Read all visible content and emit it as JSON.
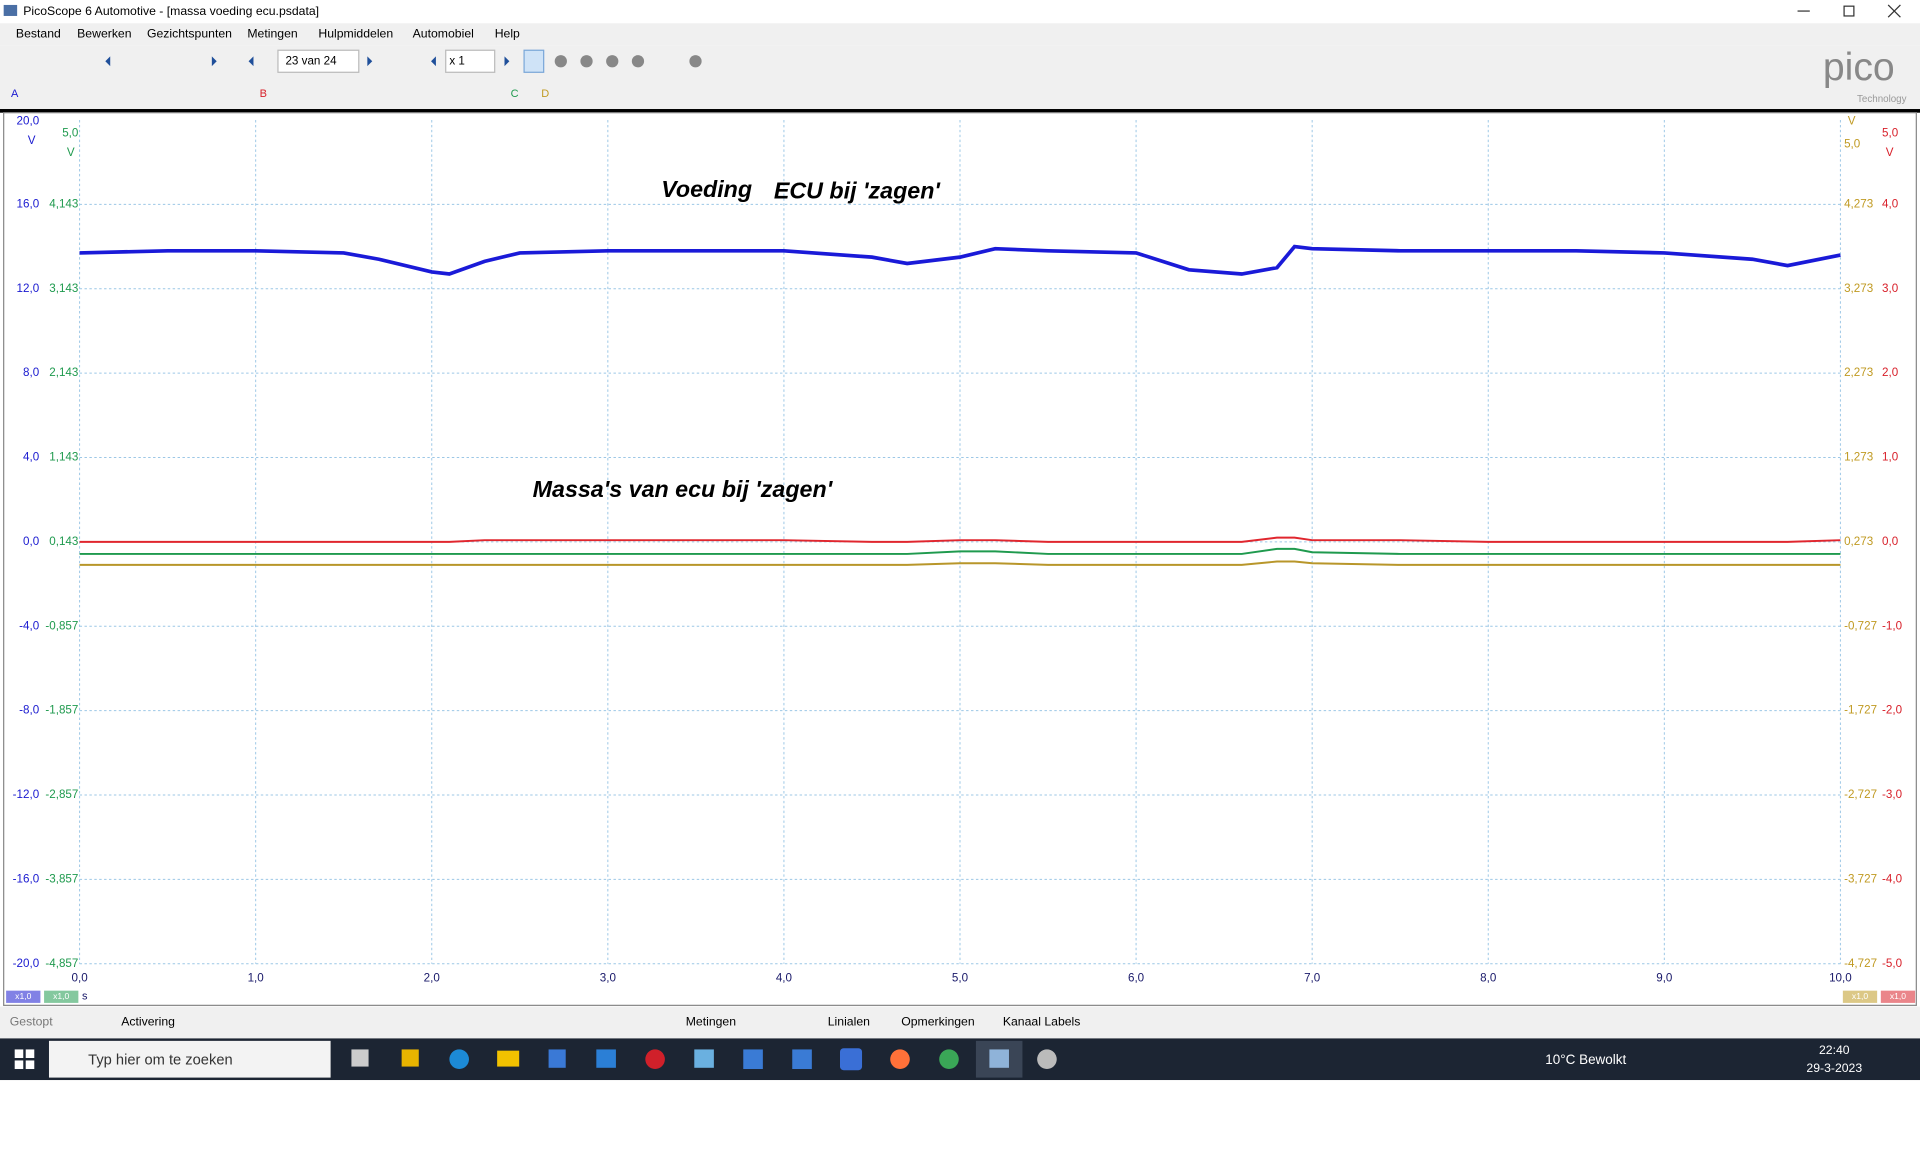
{
  "window": {
    "title": "PicoScope 6 Automotive - [massa voeding ecu.psdata]"
  },
  "menu": [
    "Bestand",
    "Bewerken",
    "Gezichtspunten",
    "Metingen",
    "Hulpmiddelen",
    "Automobiel",
    "Help"
  ],
  "toolbar": {
    "page": "23 van 24",
    "zoom": "x 1"
  },
  "logo": {
    "name": "pico",
    "sub": "Technology"
  },
  "status_bar": {
    "state": "Gestopt",
    "trigger": "Activering",
    "measurements": "Metingen",
    "rulers": "Linialen",
    "notes": "Opmerkingen",
    "channel_labels": "Kanaal Labels"
  },
  "taskbar": {
    "search": "Typ hier om te zoeken",
    "weather": "10°C  Bewolkt",
    "time": "22:40",
    "date": "29-3-2023"
  },
  "chart_data": {
    "type": "line",
    "annotations": [
      "Voeding",
      "ECU bij 'zagen'",
      "Massa's van ecu bij 'zagen'"
    ],
    "x_unit": "s",
    "xlim": [
      0,
      10
    ],
    "xticks": [
      {
        "value": 0,
        "label": "0,0"
      },
      {
        "value": 1,
        "label": "1,0"
      },
      {
        "value": 2,
        "label": "2,0"
      },
      {
        "value": 3,
        "label": "3,0"
      },
      {
        "value": 4,
        "label": "4,0"
      },
      {
        "value": 5,
        "label": "5,0"
      },
      {
        "value": 6,
        "label": "6,0"
      },
      {
        "value": 7,
        "label": "7,0"
      },
      {
        "value": 8,
        "label": "8,0"
      },
      {
        "value": 9,
        "label": "9,0"
      },
      {
        "value": 10,
        "label": "10,0"
      }
    ],
    "grid": true,
    "axes": [
      {
        "channel": "A",
        "color": "#1a1ad0",
        "side": "left",
        "range_label": "20,0",
        "unit": "V",
        "scale_badge": "x1,0",
        "lim": [
          -20,
          20
        ],
        "ticks": [
          {
            "value": 16,
            "label": "16,0"
          },
          {
            "value": 12,
            "label": "12,0"
          },
          {
            "value": 8,
            "label": "8,0"
          },
          {
            "value": 4,
            "label": "4,0"
          },
          {
            "value": 0,
            "label": "0,0"
          },
          {
            "value": -4,
            "label": "-4,0"
          },
          {
            "value": -8,
            "label": "-8,0"
          },
          {
            "value": -12,
            "label": "-12,0"
          },
          {
            "value": -16,
            "label": "-16,0"
          },
          {
            "value": -20,
            "label": "-20,0"
          }
        ]
      },
      {
        "channel": "C",
        "color": "#1f9a4e",
        "side": "left",
        "range_label": "5,0",
        "unit": "V",
        "scale_badge": "x1,0",
        "lim": [
          -4.857,
          5.143
        ],
        "ticks": [
          {
            "value": 4.143,
            "label": "4,143"
          },
          {
            "value": 3.143,
            "label": "3,143"
          },
          {
            "value": 2.143,
            "label": "2,143"
          },
          {
            "value": 1.143,
            "label": "1,143"
          },
          {
            "value": 0.143,
            "label": "0,143"
          },
          {
            "value": -0.857,
            "label": "-0,857"
          },
          {
            "value": -1.857,
            "label": "-1,857"
          },
          {
            "value": -2.857,
            "label": "-2,857"
          },
          {
            "value": -3.857,
            "label": "-3,857"
          },
          {
            "value": -4.857,
            "label": "-4,857"
          }
        ]
      },
      {
        "channel": "D",
        "color": "#c09a22",
        "side": "right",
        "range_label": "5,0",
        "unit": "V",
        "scale_badge": "x1,0",
        "lim": [
          -4.727,
          5.273
        ],
        "ticks": [
          {
            "value": 4.273,
            "label": "4,273"
          },
          {
            "value": 3.273,
            "label": "3,273"
          },
          {
            "value": 2.273,
            "label": "2,273"
          },
          {
            "value": 1.273,
            "label": "1,273"
          },
          {
            "value": 0.273,
            "label": "0,273"
          },
          {
            "value": -0.727,
            "label": "-0,727"
          },
          {
            "value": -1.727,
            "label": "-1,727"
          },
          {
            "value": -2.727,
            "label": "-2,727"
          },
          {
            "value": -3.727,
            "label": "-3,727"
          },
          {
            "value": -4.727,
            "label": "-4,727"
          }
        ]
      },
      {
        "channel": "B",
        "color": "#d8202a",
        "side": "right",
        "range_label": "5,0",
        "unit": "V",
        "scale_badge": "x1,0",
        "lim": [
          -5,
          5
        ],
        "ticks": [
          {
            "value": 4,
            "label": "4,0"
          },
          {
            "value": 3,
            "label": "3,0"
          },
          {
            "value": 2,
            "label": "2,0"
          },
          {
            "value": 1,
            "label": "1,0"
          },
          {
            "value": 0,
            "label": "0,0"
          },
          {
            "value": -1,
            "label": "-1,0"
          },
          {
            "value": -2,
            "label": "-2,0"
          },
          {
            "value": -3,
            "label": "-3,0"
          },
          {
            "value": -4,
            "label": "-4,0"
          },
          {
            "value": -5,
            "label": "-5,0"
          }
        ]
      }
    ],
    "x": [
      0,
      0.5,
      1,
      1.5,
      1.7,
      2,
      2.1,
      2.3,
      2.5,
      3,
      3.5,
      4,
      4.5,
      4.7,
      5,
      5.2,
      5.5,
      6,
      6.3,
      6.6,
      6.8,
      6.9,
      7,
      7.5,
      8,
      8.5,
      9,
      9.5,
      9.7,
      10
    ],
    "series": [
      {
        "axis": "A",
        "color": "#1a1ad8",
        "values": [
          13.7,
          13.8,
          13.8,
          13.7,
          13.4,
          12.8,
          12.7,
          13.3,
          13.7,
          13.8,
          13.8,
          13.8,
          13.5,
          13.2,
          13.5,
          13.9,
          13.8,
          13.7,
          12.9,
          12.7,
          13.0,
          14.0,
          13.9,
          13.8,
          13.8,
          13.8,
          13.7,
          13.4,
          13.1,
          13.6
        ]
      },
      {
        "axis": "B",
        "color": "#e0262e",
        "values": [
          0,
          0,
          0,
          0,
          0,
          0,
          0,
          0.02,
          0.02,
          0.02,
          0.02,
          0.02,
          0,
          0,
          0.02,
          0.02,
          0,
          0,
          0,
          0,
          0.05,
          0.05,
          0.02,
          0.02,
          0,
          0,
          0,
          0,
          0,
          0.02
        ]
      },
      {
        "axis": "C",
        "color": "#1f9a4e",
        "values": [
          0,
          0,
          0,
          0,
          0,
          0,
          0,
          0,
          0,
          0,
          0,
          0,
          0,
          0,
          0.03,
          0.03,
          0,
          0,
          0,
          0,
          0.06,
          0.06,
          0.02,
          0,
          0,
          0,
          0,
          0,
          0,
          0
        ]
      },
      {
        "axis": "D",
        "color": "#b8962a",
        "values": [
          0,
          0,
          0,
          0,
          0,
          0,
          0,
          0,
          0,
          0,
          0,
          0,
          0,
          0,
          0.02,
          0.02,
          0,
          0,
          0,
          0,
          0.04,
          0.04,
          0.02,
          0,
          0,
          0,
          0,
          0,
          0,
          0
        ]
      }
    ]
  }
}
